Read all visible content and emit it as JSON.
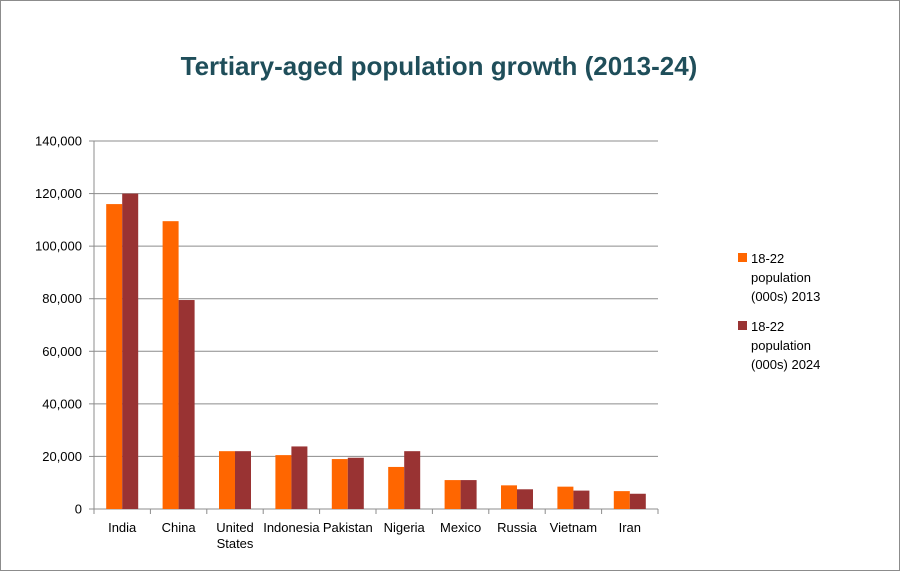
{
  "chart_data": {
    "type": "bar",
    "title": "Tertiary-aged population growth (2013-24)",
    "xlabel": "",
    "ylabel": "",
    "categories": [
      "India",
      "China",
      "United States",
      "Indonesia",
      "Pakistan",
      "Nigeria",
      "Mexico",
      "Russia",
      "Vietnam",
      "Iran"
    ],
    "category_label_lines": [
      [
        "India"
      ],
      [
        "China"
      ],
      [
        "United",
        "States"
      ],
      [
        "Indonesia"
      ],
      [
        "Pakistan"
      ],
      [
        "Nigeria"
      ],
      [
        "Mexico"
      ],
      [
        "Russia"
      ],
      [
        "Vietnam"
      ],
      [
        "Iran"
      ]
    ],
    "series": [
      {
        "name": "18-22 population (000s) 2013",
        "legend_lines": [
          "18-22",
          "population",
          "(000s) 2013"
        ],
        "color": "#ff6600",
        "values": [
          116000,
          109500,
          22000,
          20500,
          19000,
          16000,
          11000,
          9000,
          8500,
          6800
        ]
      },
      {
        "name": "18-22 population (000s) 2024",
        "legend_lines": [
          "18-22",
          "population",
          "(000s) 2024"
        ],
        "color": "#993333",
        "values": [
          120000,
          79500,
          22000,
          23800,
          19500,
          22000,
          11000,
          7500,
          7000,
          5800
        ]
      }
    ],
    "ylim": [
      0,
      140000
    ],
    "yticks": [
      0,
      20000,
      40000,
      60000,
      80000,
      100000,
      120000,
      140000
    ],
    "ytick_labels": [
      "0",
      "20,000",
      "40,000",
      "60,000",
      "80,000",
      "100,000",
      "120,000",
      "140,000"
    ],
    "grid": "horizontal",
    "legend": "right"
  }
}
